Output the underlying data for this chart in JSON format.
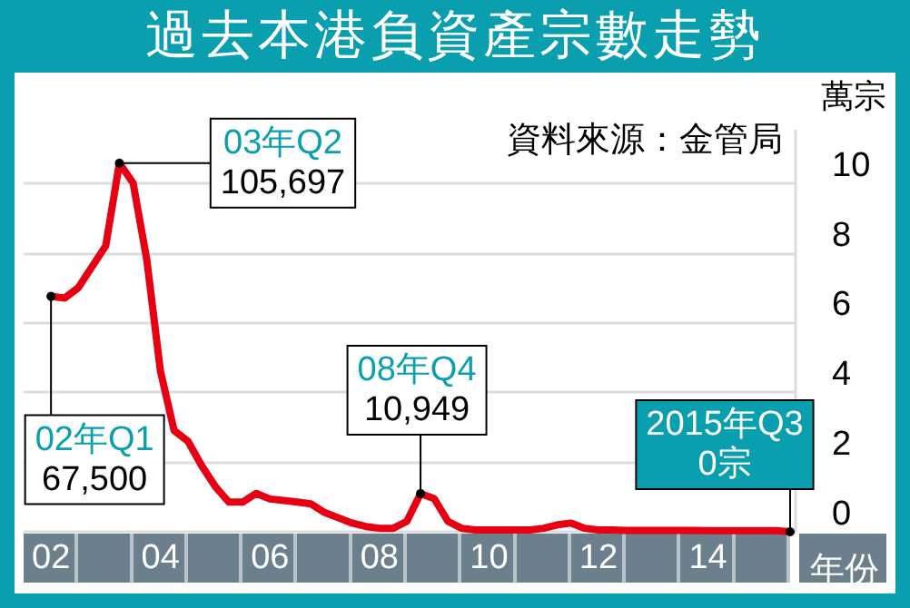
{
  "chart_data": {
    "type": "line",
    "title": "過去本港負資產宗數走勢",
    "xlabel": "年份",
    "ylabel": "萬宗",
    "annotations": [
      "資料來源：金管局",
      {
        "text": "02年Q1\n67,500",
        "x": 2,
        "y": 6.75
      },
      {
        "text": "03年Q2\n105,697",
        "x": 3.25,
        "y": 10.5697
      },
      {
        "text": "08年Q4\n10,949",
        "x": 8.75,
        "y": 1.0949
      },
      {
        "text": "2015年Q3\n0宗",
        "x": 15.5,
        "y": 0
      }
    ],
    "x": [
      2,
      2.25,
      2.5,
      2.75,
      3,
      3.25,
      3.5,
      3.75,
      4,
      4.25,
      4.5,
      4.75,
      5,
      5.25,
      5.5,
      5.75,
      6,
      6.25,
      6.5,
      6.75,
      7,
      7.25,
      7.5,
      7.75,
      8,
      8.25,
      8.5,
      8.75,
      9,
      9.25,
      9.5,
      9.75,
      10,
      10.25,
      10.5,
      10.75,
      11,
      11.25,
      11.5,
      11.75,
      12,
      12.25,
      12.5,
      12.75,
      13,
      13.25,
      13.5,
      13.75,
      14,
      14.25,
      14.5,
      14.75,
      15,
      15.25,
      15.5
    ],
    "series": [
      {
        "color": "#e60012",
        "values": [
          6.75,
          6.7,
          7.0,
          7.6,
          8.2,
          10.5697,
          10.0,
          7.8,
          4.6,
          2.9,
          2.6,
          1.9,
          1.3,
          0.85,
          0.85,
          1.1,
          0.94,
          0.9,
          0.85,
          0.8,
          0.55,
          0.4,
          0.25,
          0.15,
          0.1,
          0.1,
          0.3,
          1.0949,
          0.95,
          0.3,
          0.1,
          0.05,
          0.05,
          0.05,
          0.05,
          0.05,
          0.1,
          0.2,
          0.25,
          0.1,
          0.05,
          0.05,
          0.04,
          0.04,
          0.04,
          0.04,
          0.04,
          0.04,
          0.03,
          0.03,
          0.03,
          0.03,
          0.03,
          0.03,
          0
        ]
      }
    ],
    "xlim": [
      1.5,
      15.6
    ],
    "xticks": [
      {
        "value": 2,
        "label": "02"
      },
      {
        "value": 4,
        "label": "04"
      },
      {
        "value": 6,
        "label": "06"
      },
      {
        "value": 8,
        "label": "08"
      },
      {
        "value": 10,
        "label": "10"
      },
      {
        "value": 12,
        "label": "12"
      },
      {
        "value": 14,
        "label": "14"
      }
    ],
    "ylim": [
      0,
      11.5
    ],
    "yticks": [
      0,
      2,
      4,
      6,
      8,
      10
    ],
    "grid": "y",
    "marker": "none",
    "line_style": "solid"
  }
}
